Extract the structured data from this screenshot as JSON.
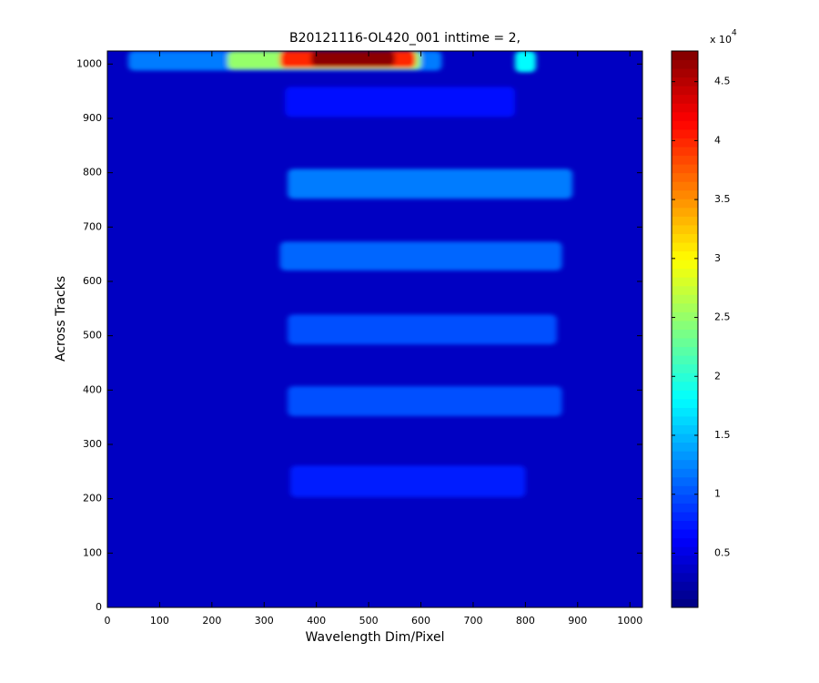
{
  "chart_data": {
    "type": "heatmap",
    "title": "B20121116-OL420_001 inttime = 2,",
    "xlabel": "Wavelength Dim/Pixel",
    "ylabel": "Across Tracks",
    "xlim": [
      0,
      1024
    ],
    "ylim": [
      0,
      1024
    ],
    "xticks": [
      0,
      100,
      200,
      300,
      400,
      500,
      600,
      700,
      800,
      900,
      1000
    ],
    "yticks": [
      0,
      100,
      200,
      300,
      400,
      500,
      600,
      700,
      800,
      900,
      1000
    ],
    "background_value": 0.35,
    "bands": [
      {
        "x": [
          40,
          640
        ],
        "y": [
          988,
          1024
        ],
        "value": 1.2
      },
      {
        "x": [
          230,
          600
        ],
        "y": [
          990,
          1024
        ],
        "value": 2.5
      },
      {
        "x": [
          330,
          590
        ],
        "y": [
          993,
          1024
        ],
        "value": 4.0
      },
      {
        "x": [
          390,
          550
        ],
        "y": [
          996,
          1024
        ],
        "value": 4.7
      },
      {
        "x": [
          780,
          820
        ],
        "y": [
          985,
          1024
        ],
        "value": 1.8
      },
      {
        "x": [
          340,
          780
        ],
        "y": [
          903,
          958
        ],
        "value": 0.7
      },
      {
        "x": [
          345,
          890
        ],
        "y": [
          752,
          807
        ],
        "value": 1.2
      },
      {
        "x": [
          330,
          870
        ],
        "y": [
          620,
          673
        ],
        "value": 1.1
      },
      {
        "x": [
          345,
          860
        ],
        "y": [
          484,
          539
        ],
        "value": 1.0
      },
      {
        "x": [
          345,
          870
        ],
        "y": [
          352,
          407
        ],
        "value": 1.0
      },
      {
        "x": [
          350,
          800
        ],
        "y": [
          203,
          261
        ],
        "value": 0.75
      }
    ],
    "colormap": "jet",
    "clim": [
      0.04,
      4.76
    ],
    "cticks": [
      0.5,
      1,
      1.5,
      2,
      2.5,
      3,
      3.5,
      4,
      4.5
    ],
    "colorbar_multiplier": {
      "base": "x 10",
      "exponent": "4"
    }
  }
}
